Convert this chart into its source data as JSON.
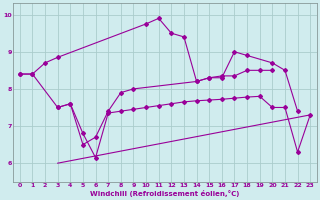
{
  "background_color": "#d0ecee",
  "line_color": "#990099",
  "grid_color": "#aacccc",
  "xlabel": "Windchill (Refroidissement éolien,°C)",
  "xlim": [
    -0.5,
    23.5
  ],
  "ylim": [
    5.5,
    10.3
  ],
  "yticks": [
    6,
    7,
    8,
    9,
    10
  ],
  "xticks": [
    0,
    1,
    2,
    3,
    4,
    5,
    6,
    7,
    8,
    9,
    10,
    11,
    12,
    13,
    14,
    15,
    16,
    17,
    18,
    19,
    20,
    21,
    22,
    23
  ],
  "curves": [
    {
      "comment": "upper curve: starts at 0 ~8.4, rises through x=2~8.7, x=3~8.8, peaks x=10~9.75, x=11~9.9, x=12~9.5, drops x=13~9.4, falls to x=14~8.2, x=15~8.3, x=16~8.35, x=17~8.35, rises x=18~8.5, x=19~8.5, x=20~8.5, falls x=21~8.4, x=22~7.4 not present, ends x=23",
      "x": [
        0,
        1,
        2,
        3,
        10,
        11,
        12,
        13,
        14,
        15,
        16,
        17,
        18,
        19,
        20
      ],
      "y": [
        8.4,
        8.4,
        8.7,
        8.85,
        9.75,
        9.9,
        9.5,
        9.4,
        8.2,
        8.3,
        8.35,
        8.35,
        8.5,
        8.5,
        8.5
      ]
    },
    {
      "comment": "middle curve with zigzag: starts 0~8.4, x=3~7.5, x=4~7.6, x=5~6.5, x=6~6.7, x=7~7.4, x=8~7.9, x=9~8.0, then continues ~8.2-8.3 til x=16, jumps x=17~9.0, x=18~8.9, x=20~8.7, x=21~8.5, x=22~7.4",
      "x": [
        0,
        1,
        3,
        4,
        5,
        6,
        7,
        8,
        9,
        14,
        15,
        16,
        17,
        18,
        20,
        21,
        22
      ],
      "y": [
        8.4,
        8.4,
        7.5,
        7.6,
        6.5,
        6.7,
        7.4,
        7.9,
        8.0,
        8.2,
        8.3,
        8.3,
        9.0,
        8.9,
        8.7,
        8.5,
        7.4
      ]
    },
    {
      "comment": "lower gradual line: starts x=3~7.5, x=4~7.6, x=5~6.8, x=6~6.15, x=7~7.35, gradually rises to x=20~7.5, then x=21~7.5, x=22~6.3, x=23~7.3",
      "x": [
        3,
        4,
        5,
        6,
        7,
        8,
        9,
        10,
        11,
        12,
        13,
        14,
        15,
        16,
        17,
        18,
        19,
        20,
        21,
        22,
        23
      ],
      "y": [
        7.5,
        7.6,
        6.8,
        6.15,
        7.35,
        7.4,
        7.45,
        7.5,
        7.55,
        7.6,
        7.65,
        7.68,
        7.7,
        7.72,
        7.75,
        7.78,
        7.8,
        7.5,
        7.5,
        6.3,
        7.3
      ]
    },
    {
      "x": [
        3,
        23
      ],
      "y": [
        6.0,
        7.3
      ],
      "no_marker": true
    }
  ]
}
